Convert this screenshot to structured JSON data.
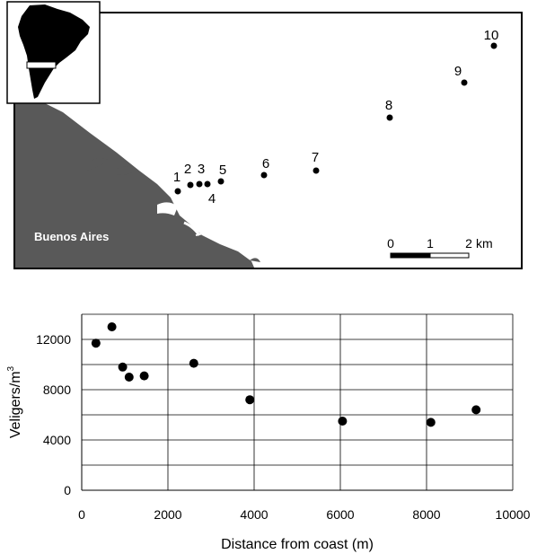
{
  "map": {
    "city_label": "Buenos Aires",
    "scale_ticks": [
      "0",
      "1",
      "2"
    ],
    "scale_unit": "km",
    "stations": [
      {
        "label": "1"
      },
      {
        "label": "2"
      },
      {
        "label": "3"
      },
      {
        "label": "4"
      },
      {
        "label": "5"
      },
      {
        "label": "6"
      },
      {
        "label": "7"
      },
      {
        "label": "8"
      },
      {
        "label": "9"
      },
      {
        "label": "10"
      }
    ]
  },
  "chart_data": {
    "type": "scatter",
    "xlabel": "Distance from coast (m)",
    "ylabel": "Veligers/m",
    "ylabel_superscript": "3",
    "xlim": [
      0,
      10000
    ],
    "ylim": [
      0,
      14000
    ],
    "x_ticks": [
      0,
      2000,
      4000,
      6000,
      8000,
      10000
    ],
    "y_ticks": [
      0,
      4000,
      8000,
      12000
    ],
    "grid": true,
    "points": [
      {
        "x": 330,
        "y": 11700
      },
      {
        "x": 700,
        "y": 13000
      },
      {
        "x": 950,
        "y": 9800
      },
      {
        "x": 1100,
        "y": 9000
      },
      {
        "x": 1450,
        "y": 9100
      },
      {
        "x": 2600,
        "y": 10100
      },
      {
        "x": 3900,
        "y": 7200
      },
      {
        "x": 6050,
        "y": 5500
      },
      {
        "x": 8100,
        "y": 5400
      },
      {
        "x": 9150,
        "y": 6400
      }
    ],
    "marker_color": "#000000"
  },
  "colors": {
    "land": "#595959",
    "inset_land": "#000000",
    "water": "#ffffff",
    "frame": "#000000"
  }
}
